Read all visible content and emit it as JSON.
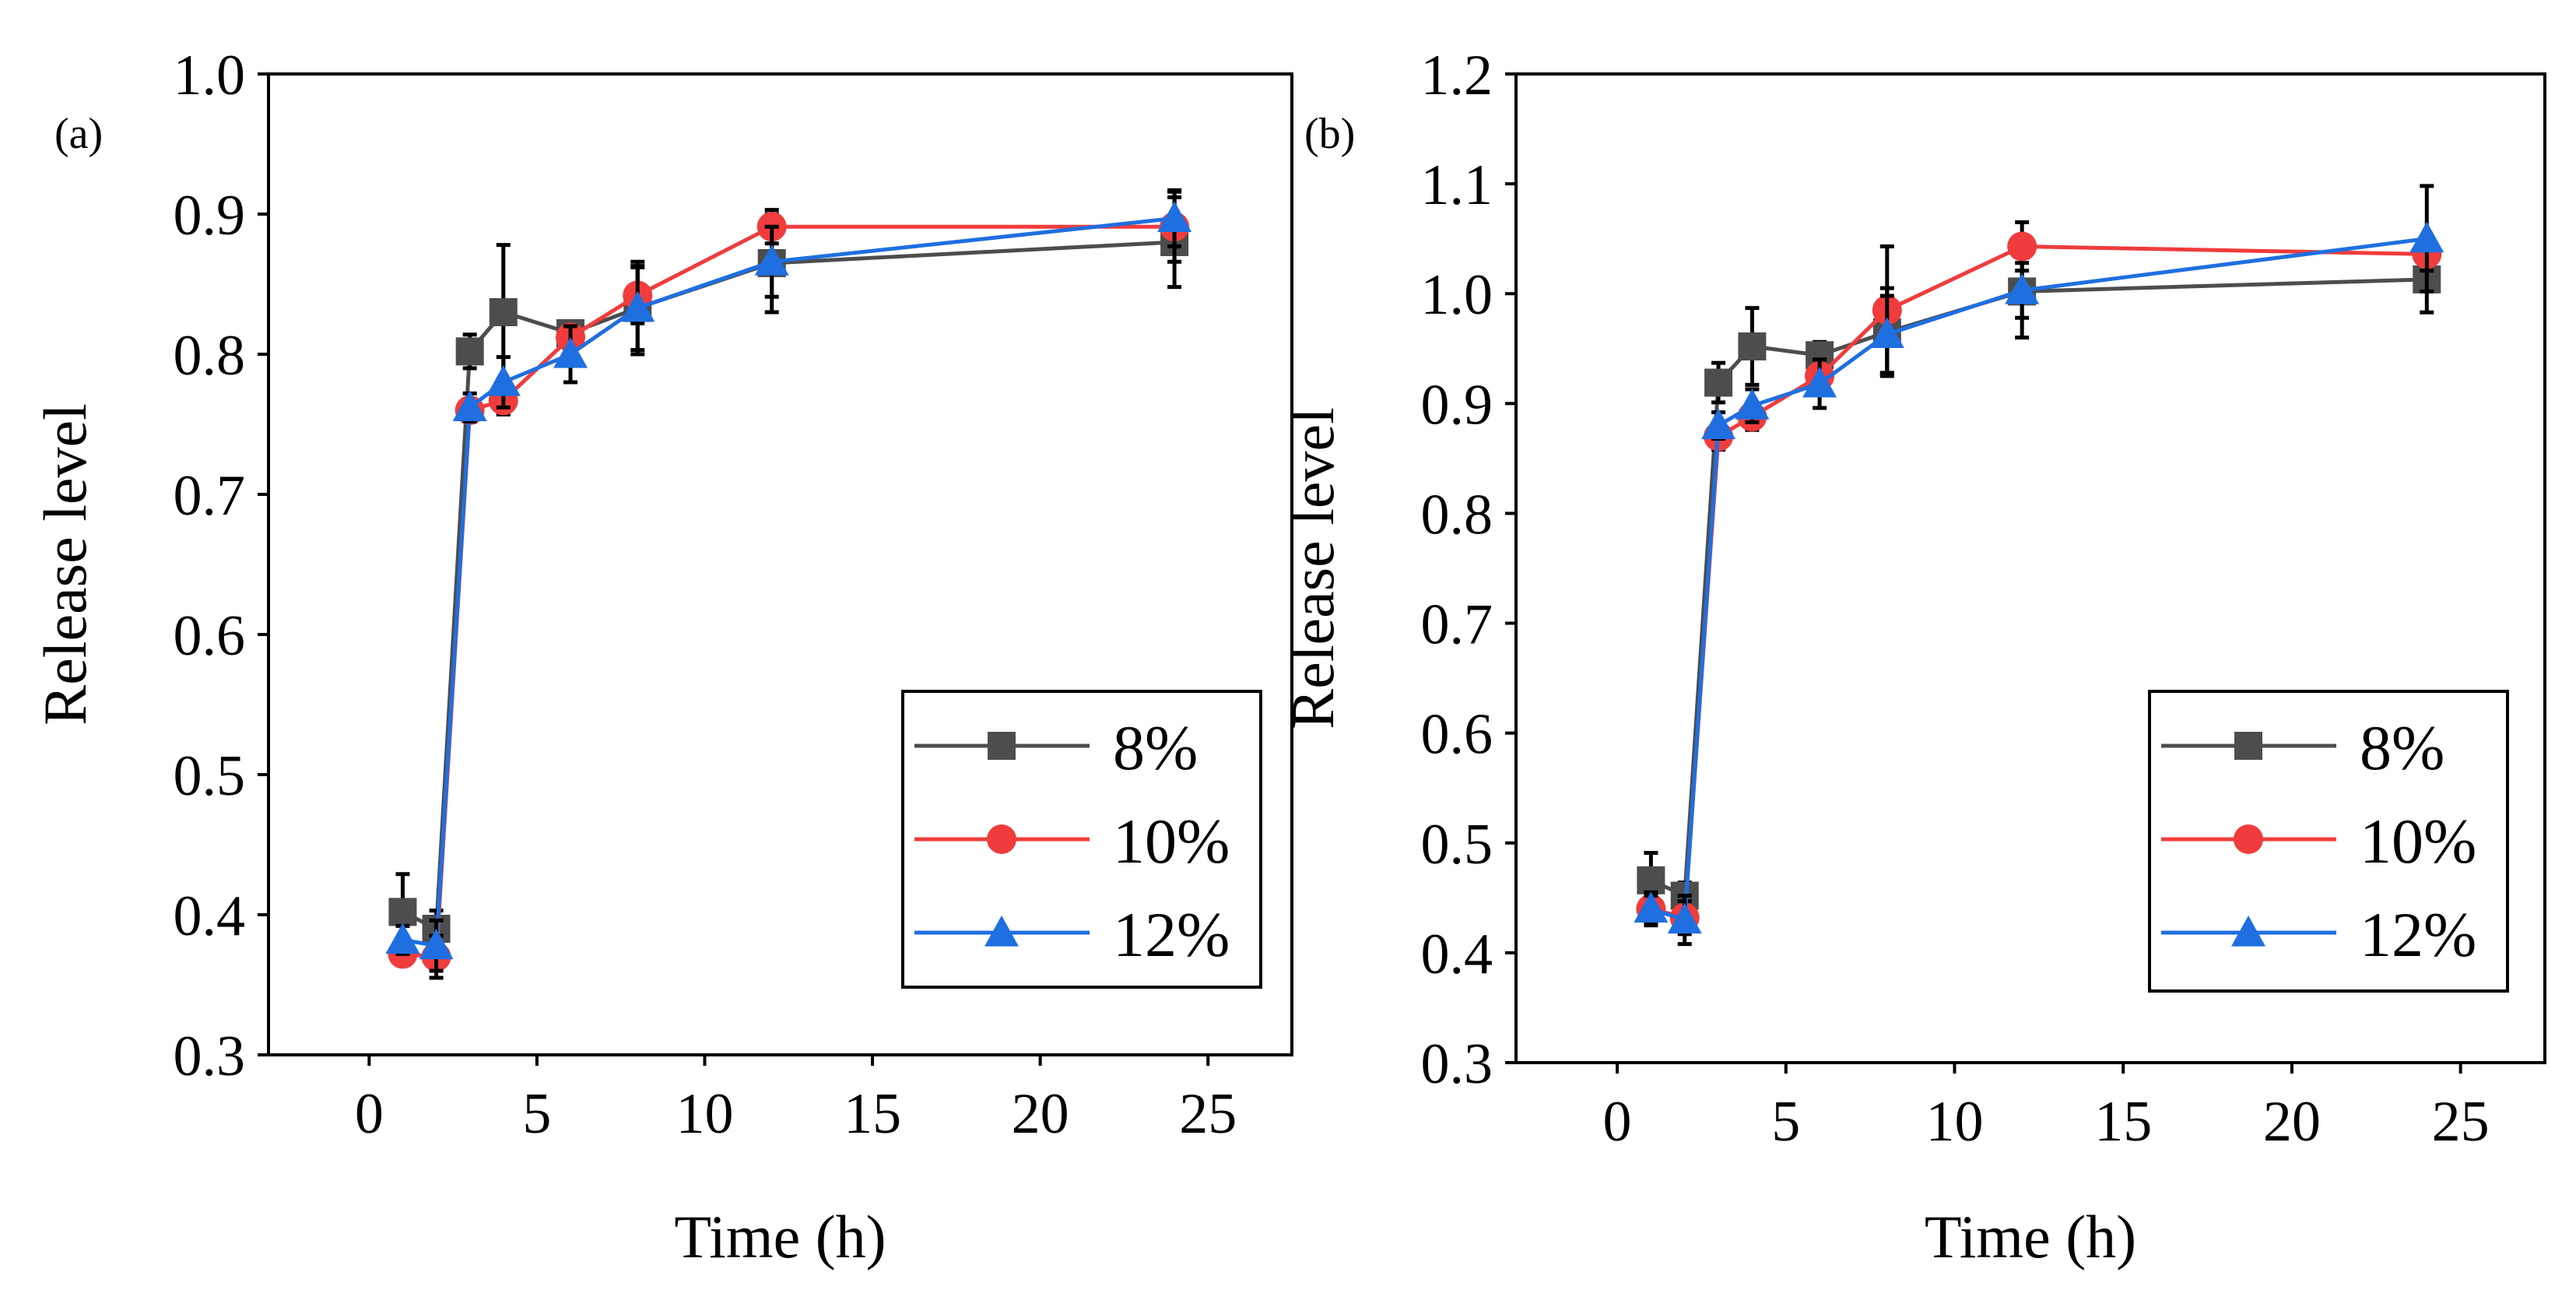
{
  "chart_data": [
    {
      "type": "line",
      "panel_label": "(a)",
      "xlabel": "Time (h)",
      "ylabel": "Release level",
      "xlim": [
        -3,
        27.5
      ],
      "ylim": [
        0.3,
        1.0
      ],
      "xticks": [
        0,
        5,
        10,
        15,
        20,
        25
      ],
      "yticks": [
        0.3,
        0.4,
        0.5,
        0.6,
        0.7,
        0.8,
        0.9,
        1.0
      ],
      "x_tick_labels": [
        "0",
        "5",
        "10",
        "15",
        "20",
        "25"
      ],
      "y_tick_labels": [
        "0.3",
        "0.4",
        "0.5",
        "0.6",
        "0.7",
        "0.8",
        "0.9",
        "1.0"
      ],
      "x": [
        1,
        2,
        3,
        4,
        6,
        8,
        12,
        24
      ],
      "legend_position": "lower-right",
      "series": [
        {
          "name": "8%",
          "color": "#4d4d4d",
          "marker": "square",
          "values": [
            0.402,
            0.39,
            0.802,
            0.83,
            0.815,
            0.833,
            0.865,
            0.88
          ],
          "errors": [
            0.027,
            0.013,
            0.012,
            0.048,
            0.007,
            0.033,
            0.035,
            0.032
          ]
        },
        {
          "name": "10%",
          "color": "#f03c3c",
          "marker": "circle",
          "values": [
            0.372,
            0.37,
            0.76,
            0.767,
            0.812,
            0.842,
            0.891,
            0.891
          ],
          "errors": [
            0.008,
            0.015,
            0.008,
            0.01,
            0.008,
            0.02,
            0.012,
            0.025
          ]
        },
        {
          "name": "12%",
          "color": "#1f6fe0",
          "marker": "triangle",
          "values": [
            0.382,
            0.378,
            0.762,
            0.78,
            0.8,
            0.833,
            0.866,
            0.897
          ],
          "errors": [
            0.01,
            0.018,
            0.01,
            0.018,
            0.02,
            0.03,
            0.025,
            0.02
          ]
        }
      ]
    },
    {
      "type": "line",
      "panel_label": "(b)",
      "xlabel": "Time (h)",
      "ylabel": "Release level",
      "xlim": [
        -3,
        27.5
      ],
      "ylim": [
        0.3,
        1.2
      ],
      "xticks": [
        0,
        5,
        10,
        15,
        20,
        25
      ],
      "yticks": [
        0.3,
        0.4,
        0.5,
        0.6,
        0.7,
        0.8,
        0.9,
        1.0,
        1.1,
        1.2
      ],
      "x_tick_labels": [
        "0",
        "5",
        "10",
        "15",
        "20",
        "25"
      ],
      "y_tick_labels": [
        "0.3",
        "0.4",
        "0.5",
        "0.6",
        "0.7",
        "0.8",
        "0.9",
        "1.0",
        "1.1",
        "1.2"
      ],
      "x": [
        1,
        2,
        3,
        4,
        6,
        8,
        12,
        24
      ],
      "legend_position": "lower-right",
      "series": [
        {
          "name": "8%",
          "color": "#4d4d4d",
          "marker": "square",
          "values": [
            0.466,
            0.452,
            0.919,
            0.952,
            0.944,
            0.965,
            1.002,
            1.013
          ],
          "errors": [
            0.025,
            0.012,
            0.018,
            0.035,
            0.012,
            0.04,
            0.042,
            0.03
          ]
        },
        {
          "name": "10%",
          "color": "#f03c3c",
          "marker": "circle",
          "values": [
            0.44,
            0.432,
            0.87,
            0.888,
            0.925,
            0.985,
            1.043,
            1.036
          ],
          "errors": [
            0.015,
            0.015,
            0.012,
            0.012,
            0.015,
            0.058,
            0.022,
            0.015
          ]
        },
        {
          "name": "12%",
          "color": "#1f6fe0",
          "marker": "triangle",
          "values": [
            0.44,
            0.43,
            0.88,
            0.898,
            0.918,
            0.963,
            1.003,
            1.05
          ],
          "errors": [
            0.012,
            0.022,
            0.012,
            0.015,
            0.022,
            0.035,
            0.025,
            0.048
          ]
        }
      ]
    }
  ]
}
